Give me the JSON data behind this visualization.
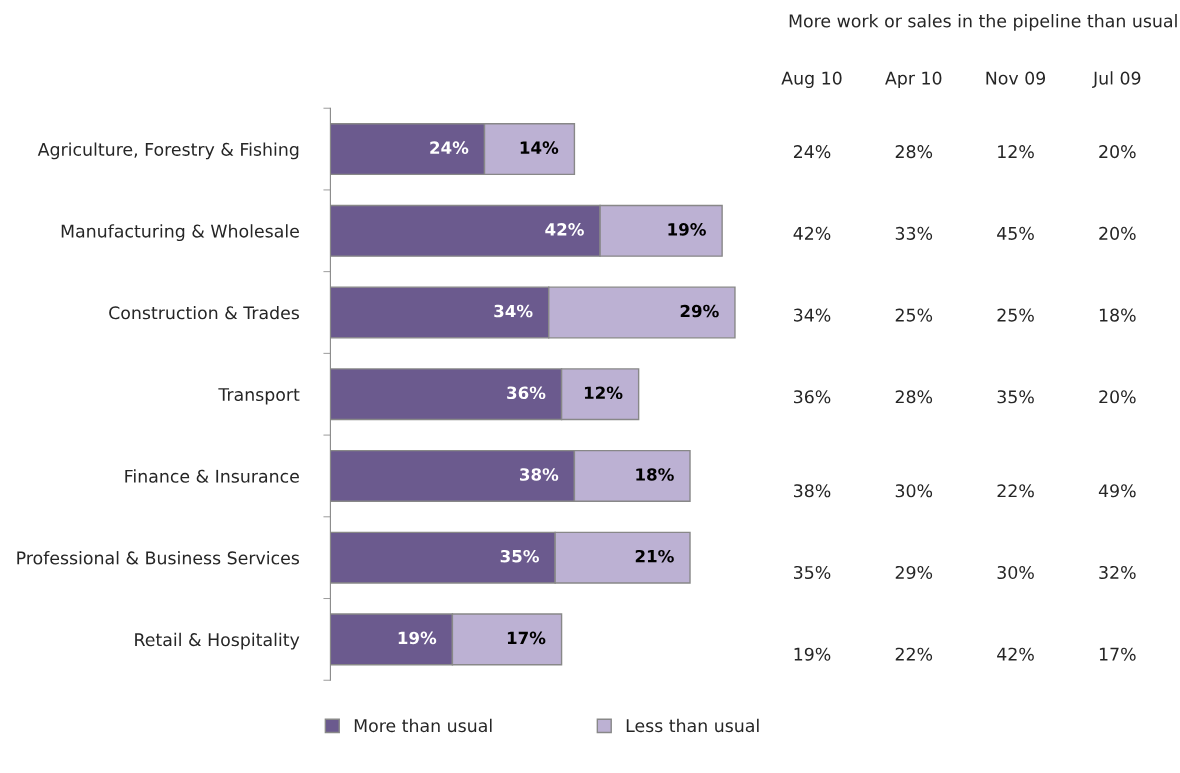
{
  "chart_data": [
    {
      "type": "bar",
      "orientation": "horizontal",
      "stacked": true,
      "legend": "bottom",
      "grid": false,
      "categories": [
        "Agriculture, Forestry & Fishing",
        "Manufacturing & Wholesale",
        "Construction & Trades",
        "Transport",
        "Finance & Insurance",
        "Professional & Business Services",
        "Retail & Hospitality"
      ],
      "series": [
        {
          "name": "More than usual",
          "color": "#6b5a8e",
          "values": [
            24,
            42,
            34,
            36,
            38,
            35,
            19
          ],
          "value_labels": [
            "24%",
            "42%",
            "34%",
            "36%",
            "38%",
            "35%",
            "19%"
          ]
        },
        {
          "name": "Less than usual",
          "color": "#bcb1d3",
          "values": [
            14,
            19,
            29,
            12,
            18,
            21,
            17
          ],
          "value_labels": [
            "14%",
            "19%",
            "29%",
            "12%",
            "18%",
            "21%",
            "17%"
          ]
        }
      ]
    },
    {
      "type": "other",
      "title": "More work or sales in the pipeline than usual",
      "categories": [
        "Aug 10",
        "Apr 10",
        "Nov 09",
        "Jul 09"
      ],
      "cell_labels": [
        [
          "24%",
          "28%",
          "12%",
          "20%"
        ],
        [
          "42%",
          "33%",
          "45%",
          "20%"
        ],
        [
          "34%",
          "25%",
          "25%",
          "18%"
        ],
        [
          "36%",
          "28%",
          "35%",
          "20%"
        ],
        [
          "38%",
          "30%",
          "22%",
          "49%"
        ],
        [
          "35%",
          "29%",
          "30%",
          "32%"
        ],
        [
          "19%",
          "22%",
          "42%",
          "17%"
        ]
      ]
    }
  ]
}
